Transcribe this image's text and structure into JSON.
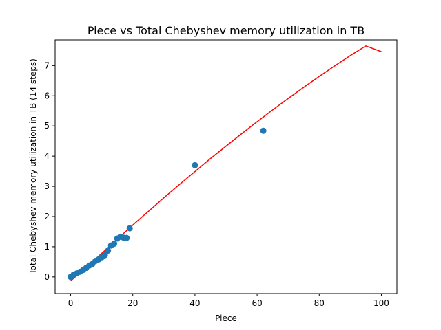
{
  "chart_data": {
    "type": "scatter",
    "title": "Piece vs Total Chebyshev memory utilization in TB",
    "xlabel": "Piece",
    "ylabel": "Total Chebyshev memory utilization in TB (14 steps)",
    "xlim": [
      -5,
      105
    ],
    "ylim": [
      -0.55,
      7.85
    ],
    "xticks": [
      0,
      20,
      40,
      60,
      80,
      100
    ],
    "yticks": [
      0,
      1,
      2,
      3,
      4,
      5,
      6,
      7
    ],
    "grid": false,
    "series": [
      {
        "kind": "scatter",
        "color": "#1f77b4",
        "x": [
          0,
          1,
          2,
          3,
          4,
          5,
          6,
          7,
          8,
          9,
          10,
          11,
          12,
          13,
          14,
          15,
          16,
          17,
          18,
          19,
          40,
          62
        ],
        "y": [
          0.0,
          0.08,
          0.12,
          0.17,
          0.23,
          0.3,
          0.38,
          0.43,
          0.53,
          0.58,
          0.65,
          0.72,
          0.87,
          1.04,
          1.1,
          1.27,
          1.33,
          1.3,
          1.29,
          1.61,
          3.7,
          4.84
        ]
      },
      {
        "kind": "line",
        "color": "#ff0000",
        "x": [
          0,
          5,
          10,
          15,
          20,
          25,
          30,
          35,
          40,
          45,
          50,
          55,
          60,
          65,
          70,
          75,
          80,
          85,
          90,
          95,
          100
        ],
        "y": [
          -0.13,
          0.31,
          0.78,
          1.25,
          1.72,
          2.17,
          2.62,
          3.06,
          3.49,
          3.92,
          4.33,
          4.74,
          5.14,
          5.53,
          5.91,
          6.28,
          6.64,
          6.99,
          7.33,
          7.65,
          7.46
        ]
      }
    ]
  }
}
